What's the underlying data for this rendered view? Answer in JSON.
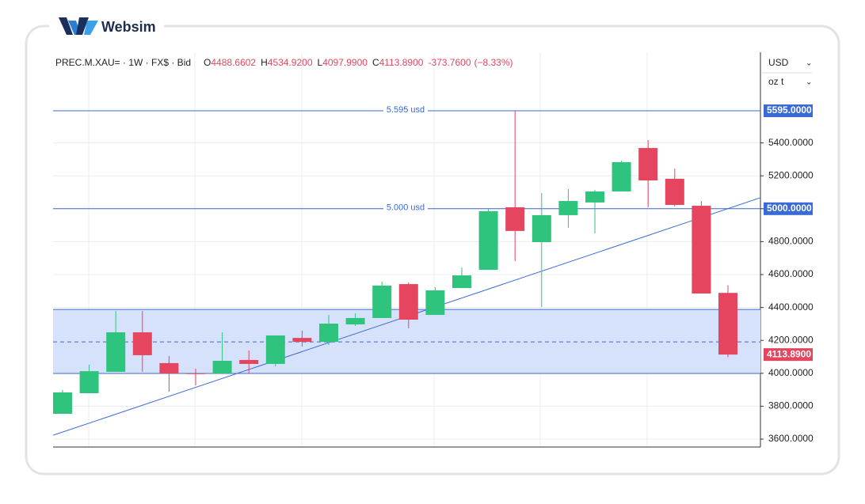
{
  "logo": "Websim",
  "chart_data": {
    "type": "candlestick",
    "header": {
      "label": "PREC.M.XAU= · 1W · FX$ · Bid",
      "ohlc": [
        {
          "key": "O",
          "text": "4488.6602"
        },
        {
          "key": "H",
          "text": "4534.9200"
        },
        {
          "key": "L",
          "text": "4097.9900"
        },
        {
          "key": "C",
          "text": "4113.8900"
        }
      ],
      "change": "-373.7600",
      "change_pct": "(−8.33%)"
    },
    "currency": "USD",
    "unit": "oz t",
    "open": [
      3754,
      3879,
      4009,
      4249,
      4062,
      4000,
      3999,
      4081,
      4057,
      4215,
      4191,
      4297,
      4336,
      4542,
      4355,
      4518,
      4629,
      5009,
      4797,
      4961,
      5038,
      5105,
      5369,
      5182,
      5018,
      4488.6602
    ],
    "high": [
      3898,
      4052,
      4379,
      4379,
      4105,
      4028,
      4249,
      4139,
      4230,
      4259,
      4355,
      4364,
      4557,
      4552,
      4523,
      4643,
      4999,
      5595,
      5095,
      5119,
      5115,
      5292,
      5417,
      5244,
      5047,
      4534.92
    ],
    "low": [
      3754,
      3879,
      4009,
      4009,
      3888,
      3927,
      3999,
      3999,
      4042,
      4163,
      4172,
      4288,
      4336,
      4273,
      4355,
      4518,
      4629,
      4682,
      4403,
      4884,
      4850,
      5105,
      5009,
      5014,
      4485,
      4097.99
    ],
    "close": [
      3884,
      4013,
      4249,
      4110,
      3999,
      3998,
      4076,
      4057,
      4230,
      4191,
      4302,
      4336,
      4533,
      4326,
      4504,
      4595,
      4985,
      4865,
      4961,
      5047,
      5105,
      5283,
      5172,
      5023,
      4485,
      4113.89
    ],
    "up_color": "#2fc47d",
    "down_color": "#e5455f",
    "line_color": "#3a6ad6",
    "ylim": [
      3552,
      5951
    ],
    "yticks": [
      {
        "value": 3600,
        "label": "3600.0000"
      },
      {
        "value": 3800,
        "label": "3800.0000"
      },
      {
        "value": 4000,
        "label": "4000.0000"
      },
      {
        "value": 4200,
        "label": "4200.0000"
      },
      {
        "value": 4400,
        "label": "4400.0000"
      },
      {
        "value": 4600,
        "label": "4600.0000"
      },
      {
        "value": 4800,
        "label": "4800.0000"
      },
      {
        "value": 5000,
        "label": "5000.0000"
      },
      {
        "value": 5200,
        "label": "5200.0000"
      },
      {
        "value": 5400,
        "label": "5400.0000"
      }
    ],
    "grid": true,
    "hlines": [
      {
        "value": 5595,
        "label": "5.595 usd",
        "tag": "5595.0000"
      },
      {
        "value": 5000,
        "label": "5.000 usd",
        "tag": "5000.0000"
      }
    ],
    "band": [
      3999,
      4388
    ],
    "band_mid": 4191,
    "trendline": {
      "x": [
        -0.35,
        26.2
      ],
      "y": [
        3624,
        5066
      ]
    },
    "last_price": {
      "value": 4113.89,
      "label": "4113.8900"
    }
  }
}
